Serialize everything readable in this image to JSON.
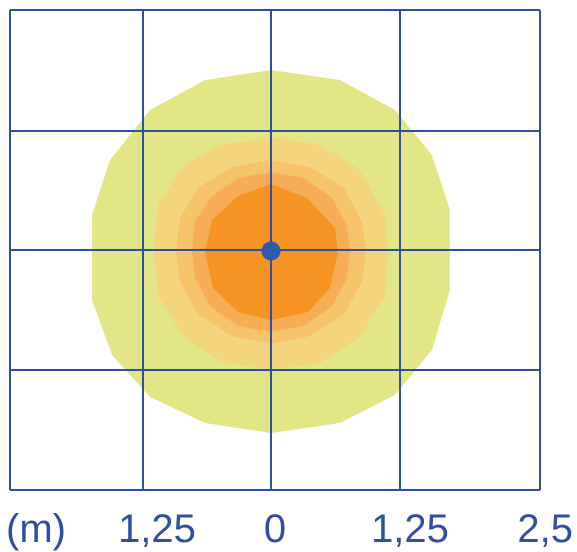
{
  "diagram": {
    "axis_unit": "(m)",
    "x_tick_labels": [
      "1,25",
      "0",
      "1,25",
      "2,5"
    ],
    "center_marker": "light-source-point",
    "colors": {
      "grid": "#2f4fa3",
      "text": "#2f4fa3",
      "zone_outer": "#e3e684",
      "zone_2": "#f2d57c",
      "zone_3": "#f4c36a",
      "zone_4": "#f6ad55",
      "zone_inner": "#f59423",
      "center_dot": "#2e5bb0",
      "background": "#ffffff"
    }
  }
}
